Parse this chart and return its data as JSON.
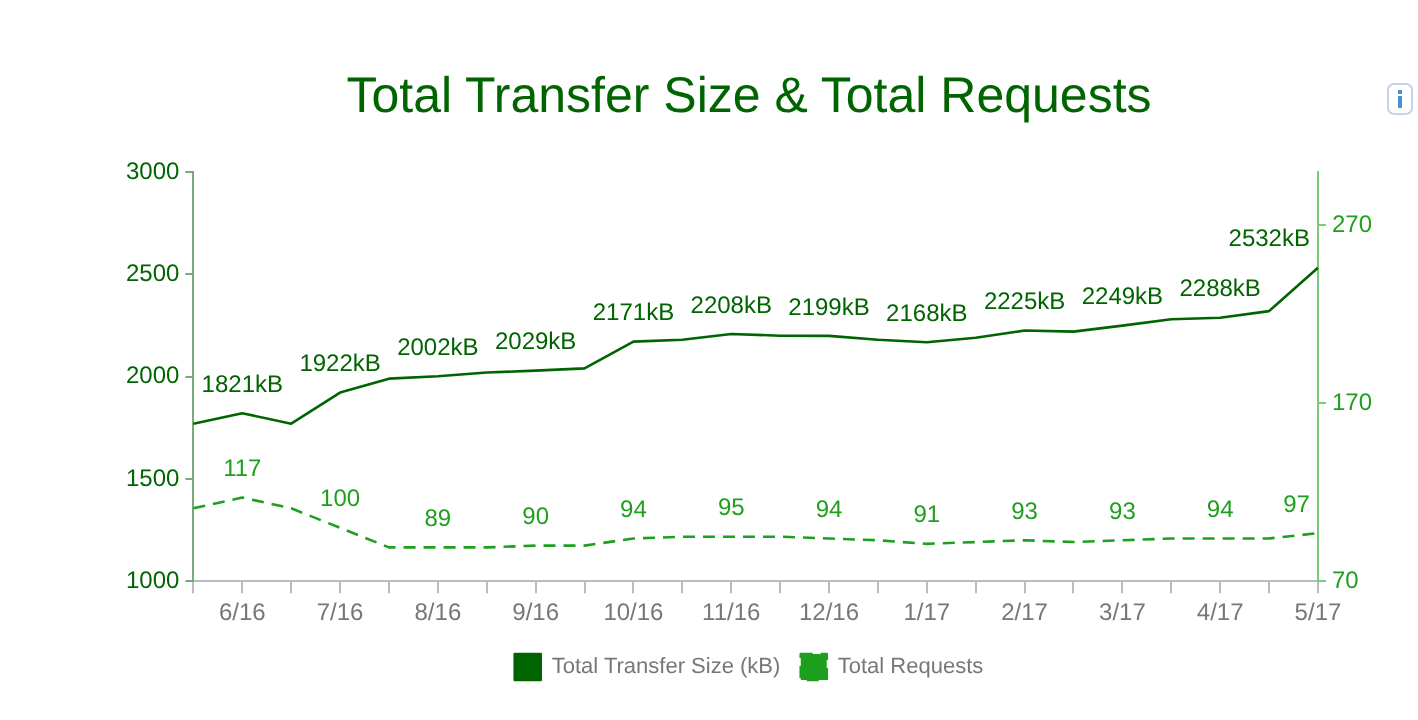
{
  "chart_data": {
    "type": "line",
    "title": "Total Transfer Size & Total Requests",
    "categories": [
      null,
      "6/16",
      null,
      "7/16",
      null,
      "8/16",
      null,
      "9/16",
      null,
      "10/16",
      null,
      "11/16",
      null,
      "12/16",
      null,
      "1/17",
      null,
      "2/17",
      null,
      "3/17",
      null,
      "4/17",
      null,
      "5/17"
    ],
    "series": [
      {
        "name": "Total Transfer Size (kB)",
        "color": "#006400",
        "line_style": "solid",
        "values": [
          1770,
          1821,
          1770,
          1922,
          1990,
          2002,
          2020,
          2029,
          2040,
          2171,
          2180,
          2208,
          2200,
          2199,
          2180,
          2168,
          2190,
          2225,
          2220,
          2249,
          2280,
          2288,
          2320,
          2532
        ],
        "value_labels": [
          null,
          "1821kB",
          null,
          "1922kB",
          null,
          "2002kB",
          null,
          "2029kB",
          null,
          "2171kB",
          null,
          "2208kB",
          null,
          "2199kB",
          null,
          "2168kB",
          null,
          "2225kB",
          null,
          "2249kB",
          null,
          "2288kB",
          null,
          "2532kB"
        ]
      },
      {
        "name": "Total Requests",
        "color": "#1ea01e",
        "line_style": "dashed",
        "axis": "y2",
        "values": [
          111,
          117,
          111,
          100,
          89,
          89,
          89,
          90,
          90,
          94,
          95,
          95,
          95,
          94,
          93,
          91,
          92,
          93,
          92,
          93,
          94,
          94,
          94,
          97
        ],
        "value_labels": [
          null,
          "117",
          null,
          "100",
          null,
          "89",
          null,
          "90",
          null,
          "94",
          null,
          "95",
          null,
          "94",
          null,
          "91",
          null,
          "93",
          null,
          "93",
          null,
          "94",
          null,
          "97"
        ]
      }
    ],
    "ylim": [
      1000,
      3000
    ],
    "yticks": [
      1000,
      1500,
      2000,
      2500,
      3000
    ],
    "y2lim": [
      70,
      300
    ],
    "y2ticks": [
      70,
      170,
      270
    ],
    "grid": false,
    "legend": "bottom",
    "marker": "none"
  }
}
